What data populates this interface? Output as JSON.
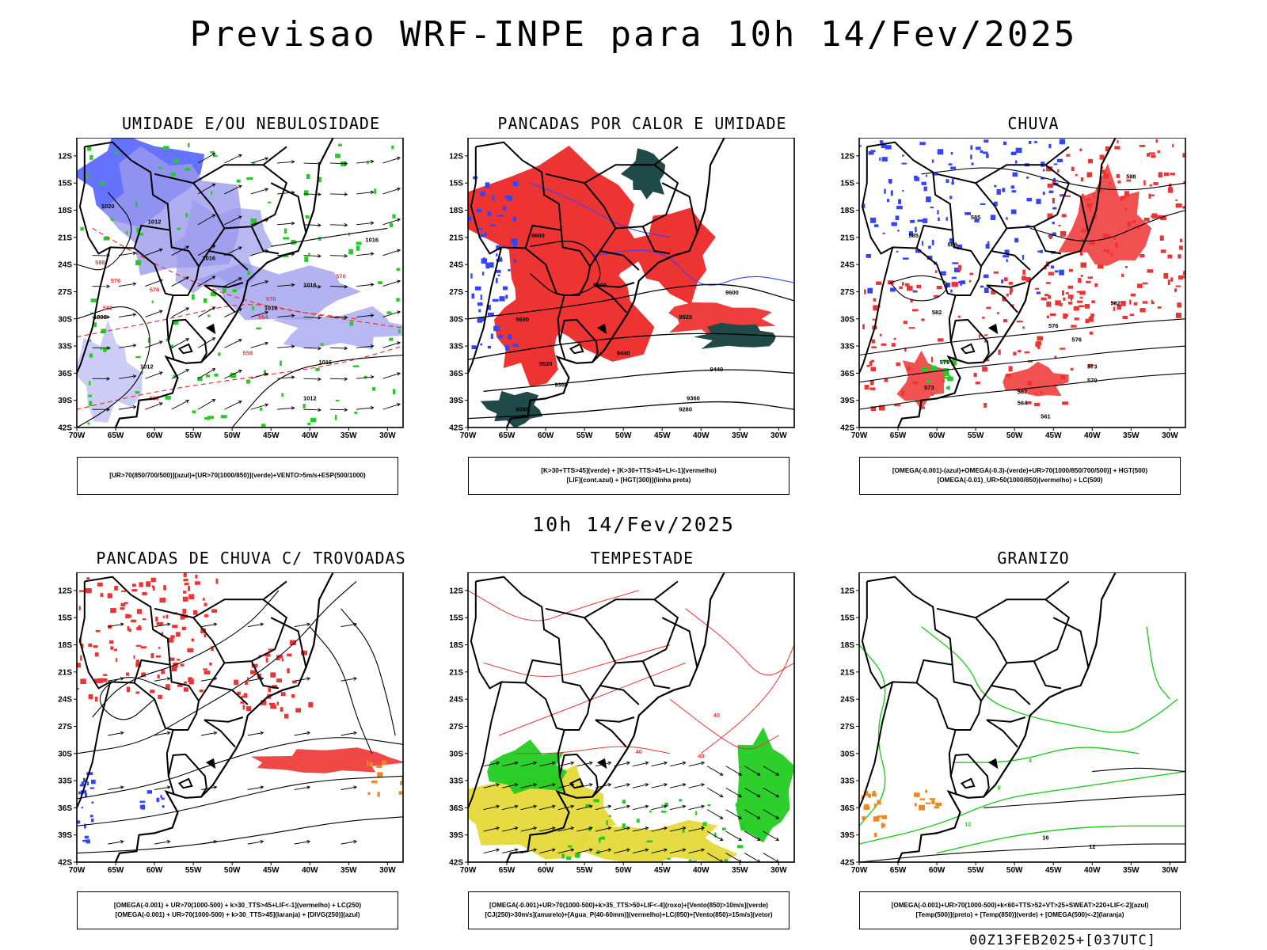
{
  "title": "Previsao WRF-INPE  para 10h 14/Fev/2025",
  "subtitle": "10h 14/Fev/2025",
  "footer": "00Z13FEB2025+[037UTC]",
  "colors": {
    "background": "#ffffff",
    "frame": "#000000",
    "blue": "#3344ff",
    "green": "#22cc22",
    "red": "#ee3333",
    "lavender": "#9a9aee",
    "dark_teal": "#1f4a48",
    "yellow": "#e6d93a",
    "orange": "#ee8822"
  },
  "panels": [
    {
      "title": "UMIDADE E/OU NEBULOSIDADE",
      "legend": [
        "[UR>70(850/700/500)](azul)+[UR>70(1000/850)](verde)+VENTO>5m/s+ESP(500/1000)"
      ]
    },
    {
      "title": "PANCADAS POR CALOR E UMIDADE",
      "legend": [
        "[K>30+TTS>45](verde) + [K>30+TTS>45+LI<-1](vermelho)",
        "[LIF](cont.azul) + [HGT(300)](linha preta)"
      ]
    },
    {
      "title": "CHUVA",
      "legend": [
        "[OMEGA(-0.001)-(azul)+OMEGA(-0.3)-(verde)+UR>70(1000/850/700/500)] + HGT(500)",
        "[OMEGA(-0.01)_UR>50(1000/850)(vermelho) + LC(500)"
      ]
    },
    {
      "title": "PANCADAS DE CHUVA C/ TROVOADAS",
      "legend": [
        "[OMEGA(-0.001) + UR>70(1000-500) + k>30_TTS>45+LIF<-1](vermelho) + LC(250)",
        "[OMEGA(-0.001) + UR>70(1000-500) + k>30_TTS>45](laranja) + [DIVG(250)](azul)"
      ]
    },
    {
      "title": "TEMPESTADE",
      "legend": [
        "[OMEGA(-0.001)+UR>70(1000-500)+k>35_TTS>50+LIF<-4](roxo)+[Vento(850)>10m/s](verde)",
        "[CJ(250)>30m/s](amarelo)+[Agua_P(40-60mm)](vermelho)+LC(850)+[Vento(850)>15m/s](vetor)"
      ]
    },
    {
      "title": "GRANIZO",
      "legend": [
        "[OMEGA(-0.001)+UR>70(1000-500)+k<60+TTS>52+VT>25+SWEAT>220+LIF<-2](azul)",
        "[Temp(500)](preto) + [Temp(850)](verde) + [OMEGA(500)<-2](laranja)"
      ]
    }
  ],
  "chart_data": {
    "type": "map-panels",
    "title": "Previsao WRF-INPE  para 10h 14/Fev/2025",
    "subtitle": "10h 14/Fev/2025",
    "lat_ticks": [
      "12S",
      "15S",
      "18S",
      "21S",
      "24S",
      "27S",
      "30S",
      "33S",
      "36S",
      "39S",
      "42S"
    ],
    "lon_ticks": [
      "70W",
      "65W",
      "60W",
      "55W",
      "50W",
      "45W",
      "40W",
      "35W",
      "30W"
    ],
    "lat_range": [
      -42,
      -10
    ],
    "lon_range": [
      -70,
      -28
    ],
    "contour_labels": {
      "p1": [
        "1020",
        "1012",
        "1016",
        "1008",
        "1016",
        "1016",
        "1016",
        "1012",
        "1016",
        "1012",
        "570",
        "576",
        "570",
        "564",
        "558",
        "552",
        "576",
        "582",
        "588"
      ],
      "p2": [
        "9600",
        "9600",
        "9600",
        "9520",
        "9520",
        "9440",
        "9360",
        "9360",
        "9280",
        "9280",
        "9440",
        "9600"
      ],
      "p3": [
        "585",
        "588",
        "582",
        "579",
        "576",
        "576",
        "573",
        "573",
        "570",
        "567",
        "564",
        "561",
        "588",
        "585",
        "582"
      ],
      "p5": [
        "40",
        "40",
        "40"
      ],
      "p6": [
        "4",
        "8",
        "12",
        "16",
        "12"
      ]
    }
  }
}
